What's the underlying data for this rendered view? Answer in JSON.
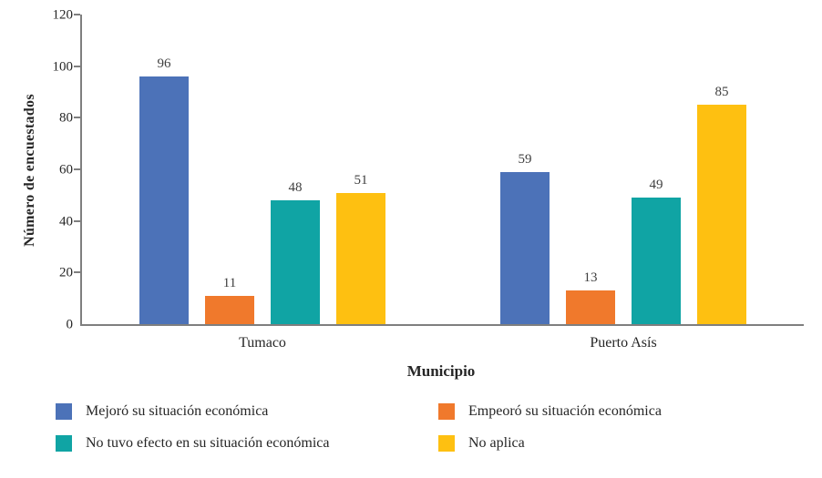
{
  "chart_data": {
    "type": "bar",
    "title": "",
    "xlabel": "Municipio",
    "ylabel": "Número de encuestados",
    "categories": [
      "Tumaco",
      "Puerto Asís"
    ],
    "series": [
      {
        "name": "Mejoró su situación económica",
        "color": "#4c72b8",
        "values": [
          96,
          59
        ]
      },
      {
        "name": "Empeoró su situación económica",
        "color": "#f0792c",
        "values": [
          11,
          13
        ]
      },
      {
        "name": "No tuvo efecto en su situación económica",
        "color": "#10a4a4",
        "values": [
          48,
          49
        ]
      },
      {
        "name": "No aplica",
        "color": "#fec011",
        "values": [
          51,
          85
        ]
      }
    ],
    "ylim": [
      0,
      120
    ],
    "ytick_step": 20,
    "grid": false,
    "legend_position": "bottom"
  }
}
